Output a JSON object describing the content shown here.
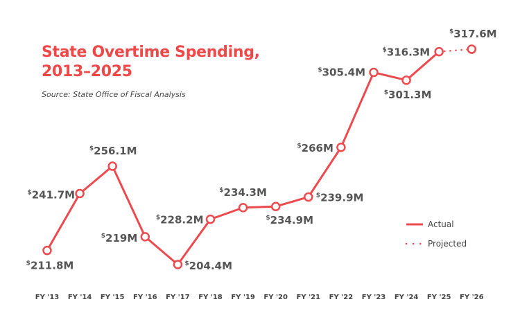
{
  "chart_data": {
    "type": "line",
    "title": "State Overtime Spending, 2013–2025",
    "title_lines": [
      "State Overtime Spending,",
      "2013–2025"
    ],
    "subtitle": "Source: State Office of Fiscal Analysis",
    "xlabel": "",
    "ylabel": "",
    "categories": [
      "FY '13",
      "FY '14",
      "FY '15",
      "FY '16",
      "FY '17",
      "FY '18",
      "FY '19",
      "FY '20",
      "FY '21",
      "FY '22",
      "FY '23",
      "FY '24",
      "FY '25",
      "FY '26"
    ],
    "values": [
      211.8,
      241.7,
      256.1,
      219,
      204.4,
      228.2,
      234.3,
      234.9,
      239.9,
      266,
      305.4,
      301.3,
      316.3,
      317.6
    ],
    "data_labels": [
      "211.8M",
      "241.7M",
      "256.1M",
      "219M",
      "204.4M",
      "228.2M",
      "234.3M",
      "234.9M",
      "239.9M",
      "266M",
      "305.4M",
      "301.3M",
      "316.3M",
      "317.6M"
    ],
    "currency_symbol": "$",
    "series": [
      {
        "name": "Actual",
        "style": "solid",
        "range": [
          "FY '13",
          "FY '25"
        ]
      },
      {
        "name": "Projected",
        "style": "dotted",
        "range": [
          "FY '25",
          "FY '26"
        ]
      }
    ],
    "ylim": [
      198,
      322
    ],
    "grid": false,
    "y_axis_visible": false,
    "legend_placement": "right",
    "colors": {
      "line": "#ec4a4f",
      "label": "#555555",
      "title": "#ee4848",
      "marker_fill": "#ffffff"
    }
  }
}
